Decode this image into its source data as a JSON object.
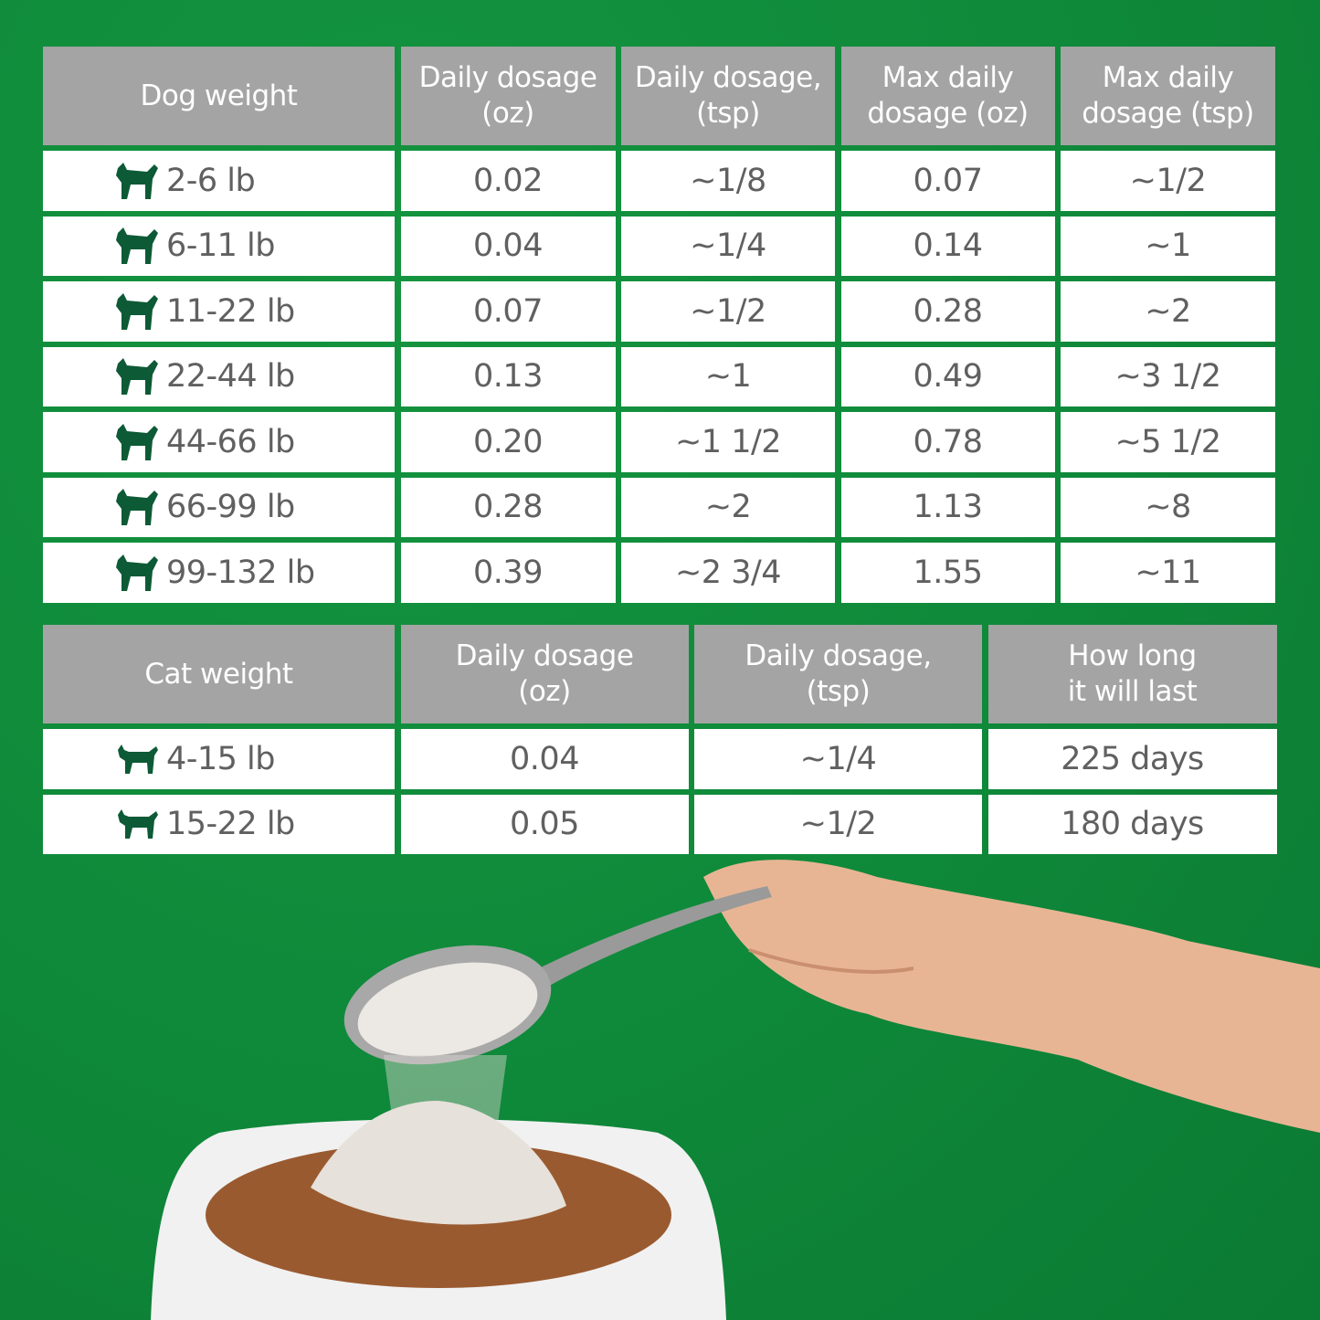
{
  "dog_table": {
    "headers": [
      "Dog weight",
      "Daily dosage\n(oz)",
      "Daily dosage,\n(tsp)",
      "Max daily\ndosage (oz)",
      "Max daily\ndosage (tsp)"
    ],
    "rows": [
      {
        "icon": "chihuahua-icon",
        "weight": "2-6 lb",
        "daily_oz": "0.02",
        "daily_tsp": "~1/8",
        "max_oz": "0.07",
        "max_tsp": "~1/2"
      },
      {
        "icon": "pomeranian-icon",
        "weight": "6-11 lb",
        "daily_oz": "0.04",
        "daily_tsp": "~1/4",
        "max_oz": "0.14",
        "max_tsp": "~1"
      },
      {
        "icon": "terrier-icon",
        "weight": "11-22 lb",
        "daily_oz": "0.07",
        "daily_tsp": "~1/2",
        "max_oz": "0.28",
        "max_tsp": "~2"
      },
      {
        "icon": "spaniel-icon",
        "weight": "22-44 lb",
        "daily_oz": "0.13",
        "daily_tsp": "~1",
        "max_oz": "0.49",
        "max_tsp": "~3 1/2"
      },
      {
        "icon": "chow-icon",
        "weight": "44-66 lb",
        "daily_oz": "0.20",
        "daily_tsp": "~1 1/2",
        "max_oz": "0.78",
        "max_tsp": "~5 1/2"
      },
      {
        "icon": "doberman-icon",
        "weight": "66-99 lb",
        "daily_oz": "0.28",
        "daily_tsp": "~2",
        "max_oz": "1.13",
        "max_tsp": "~8"
      },
      {
        "icon": "akita-icon",
        "weight": "99-132 lb",
        "daily_oz": "0.39",
        "daily_tsp": "~2 3/4",
        "max_oz": "1.55",
        "max_tsp": "~11"
      }
    ]
  },
  "cat_table": {
    "headers": [
      "Cat weight",
      "Daily dosage\n(oz)",
      "Daily dosage,\n(tsp)",
      "How long\nit will last"
    ],
    "rows": [
      {
        "icon": "small-cat-icon",
        "weight": "4-15 lb",
        "daily_oz": "0.04",
        "daily_tsp": "~1/4",
        "lasts": "225 days"
      },
      {
        "icon": "large-cat-icon",
        "weight": "15-22 lb",
        "daily_oz": "0.05",
        "daily_tsp": "~1/2",
        "lasts": "180 days"
      }
    ]
  },
  "colors": {
    "background": "#0f8a3a",
    "header": "#a4a4a4",
    "icon": "#0d5a36",
    "text": "#606060"
  }
}
